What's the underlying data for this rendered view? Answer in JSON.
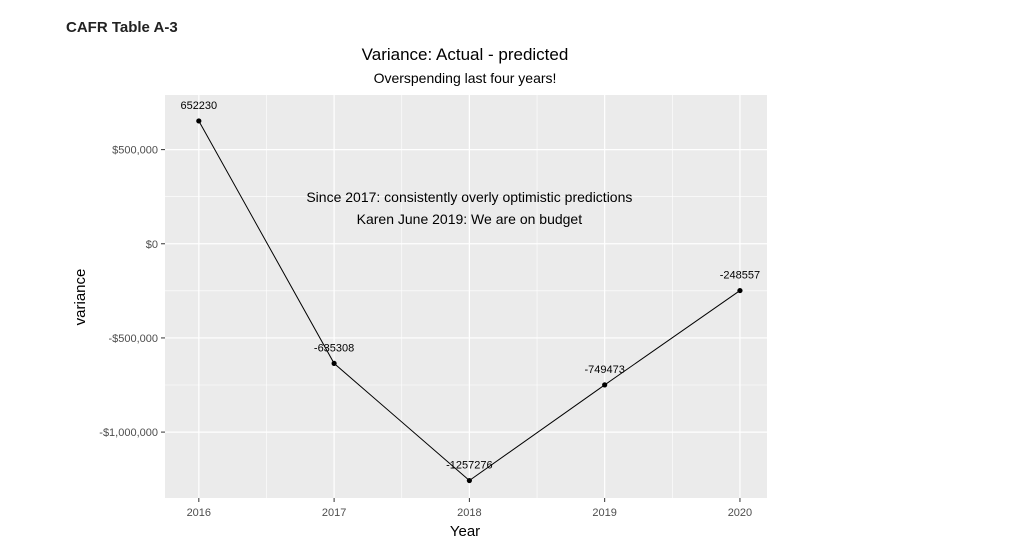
{
  "page": {
    "header": "CAFR Table A-3"
  },
  "chart_data": {
    "type": "line",
    "title": "Variance: Actual - predicted",
    "subtitle": "Overspending last four years!",
    "xlabel": "Year",
    "ylabel": "variance",
    "x": [
      2016,
      2017,
      2018,
      2019,
      2020
    ],
    "series": [
      {
        "values": [
          652230,
          -635308,
          -1257276,
          -749473,
          -248557
        ]
      }
    ],
    "point_labels": [
      "652230",
      "-635308",
      "-1257276",
      "-749473",
      "-248557"
    ],
    "xticks": [
      "2016",
      "2017",
      "2018",
      "2019",
      "2020"
    ],
    "yticks": [
      {
        "value": 500000,
        "label": "$500,000"
      },
      {
        "value": 0,
        "label": "$0"
      },
      {
        "value": -500000,
        "label": "-$500,000"
      },
      {
        "value": -1000000,
        "label": "-$1,000,000"
      }
    ],
    "annotations": [
      "Since 2017: consistently overly optimistic predictions",
      "Karen June 2019: We are on budget"
    ],
    "xlim": [
      2015.75,
      2020.2
    ],
    "ylim": [
      -1350000,
      790000
    ],
    "grid": true,
    "colors": {
      "panel": "#ebebeb",
      "grid": "#ffffff",
      "line": "#000000",
      "text": "#000000",
      "axis_text": "#4d4d4d"
    }
  }
}
